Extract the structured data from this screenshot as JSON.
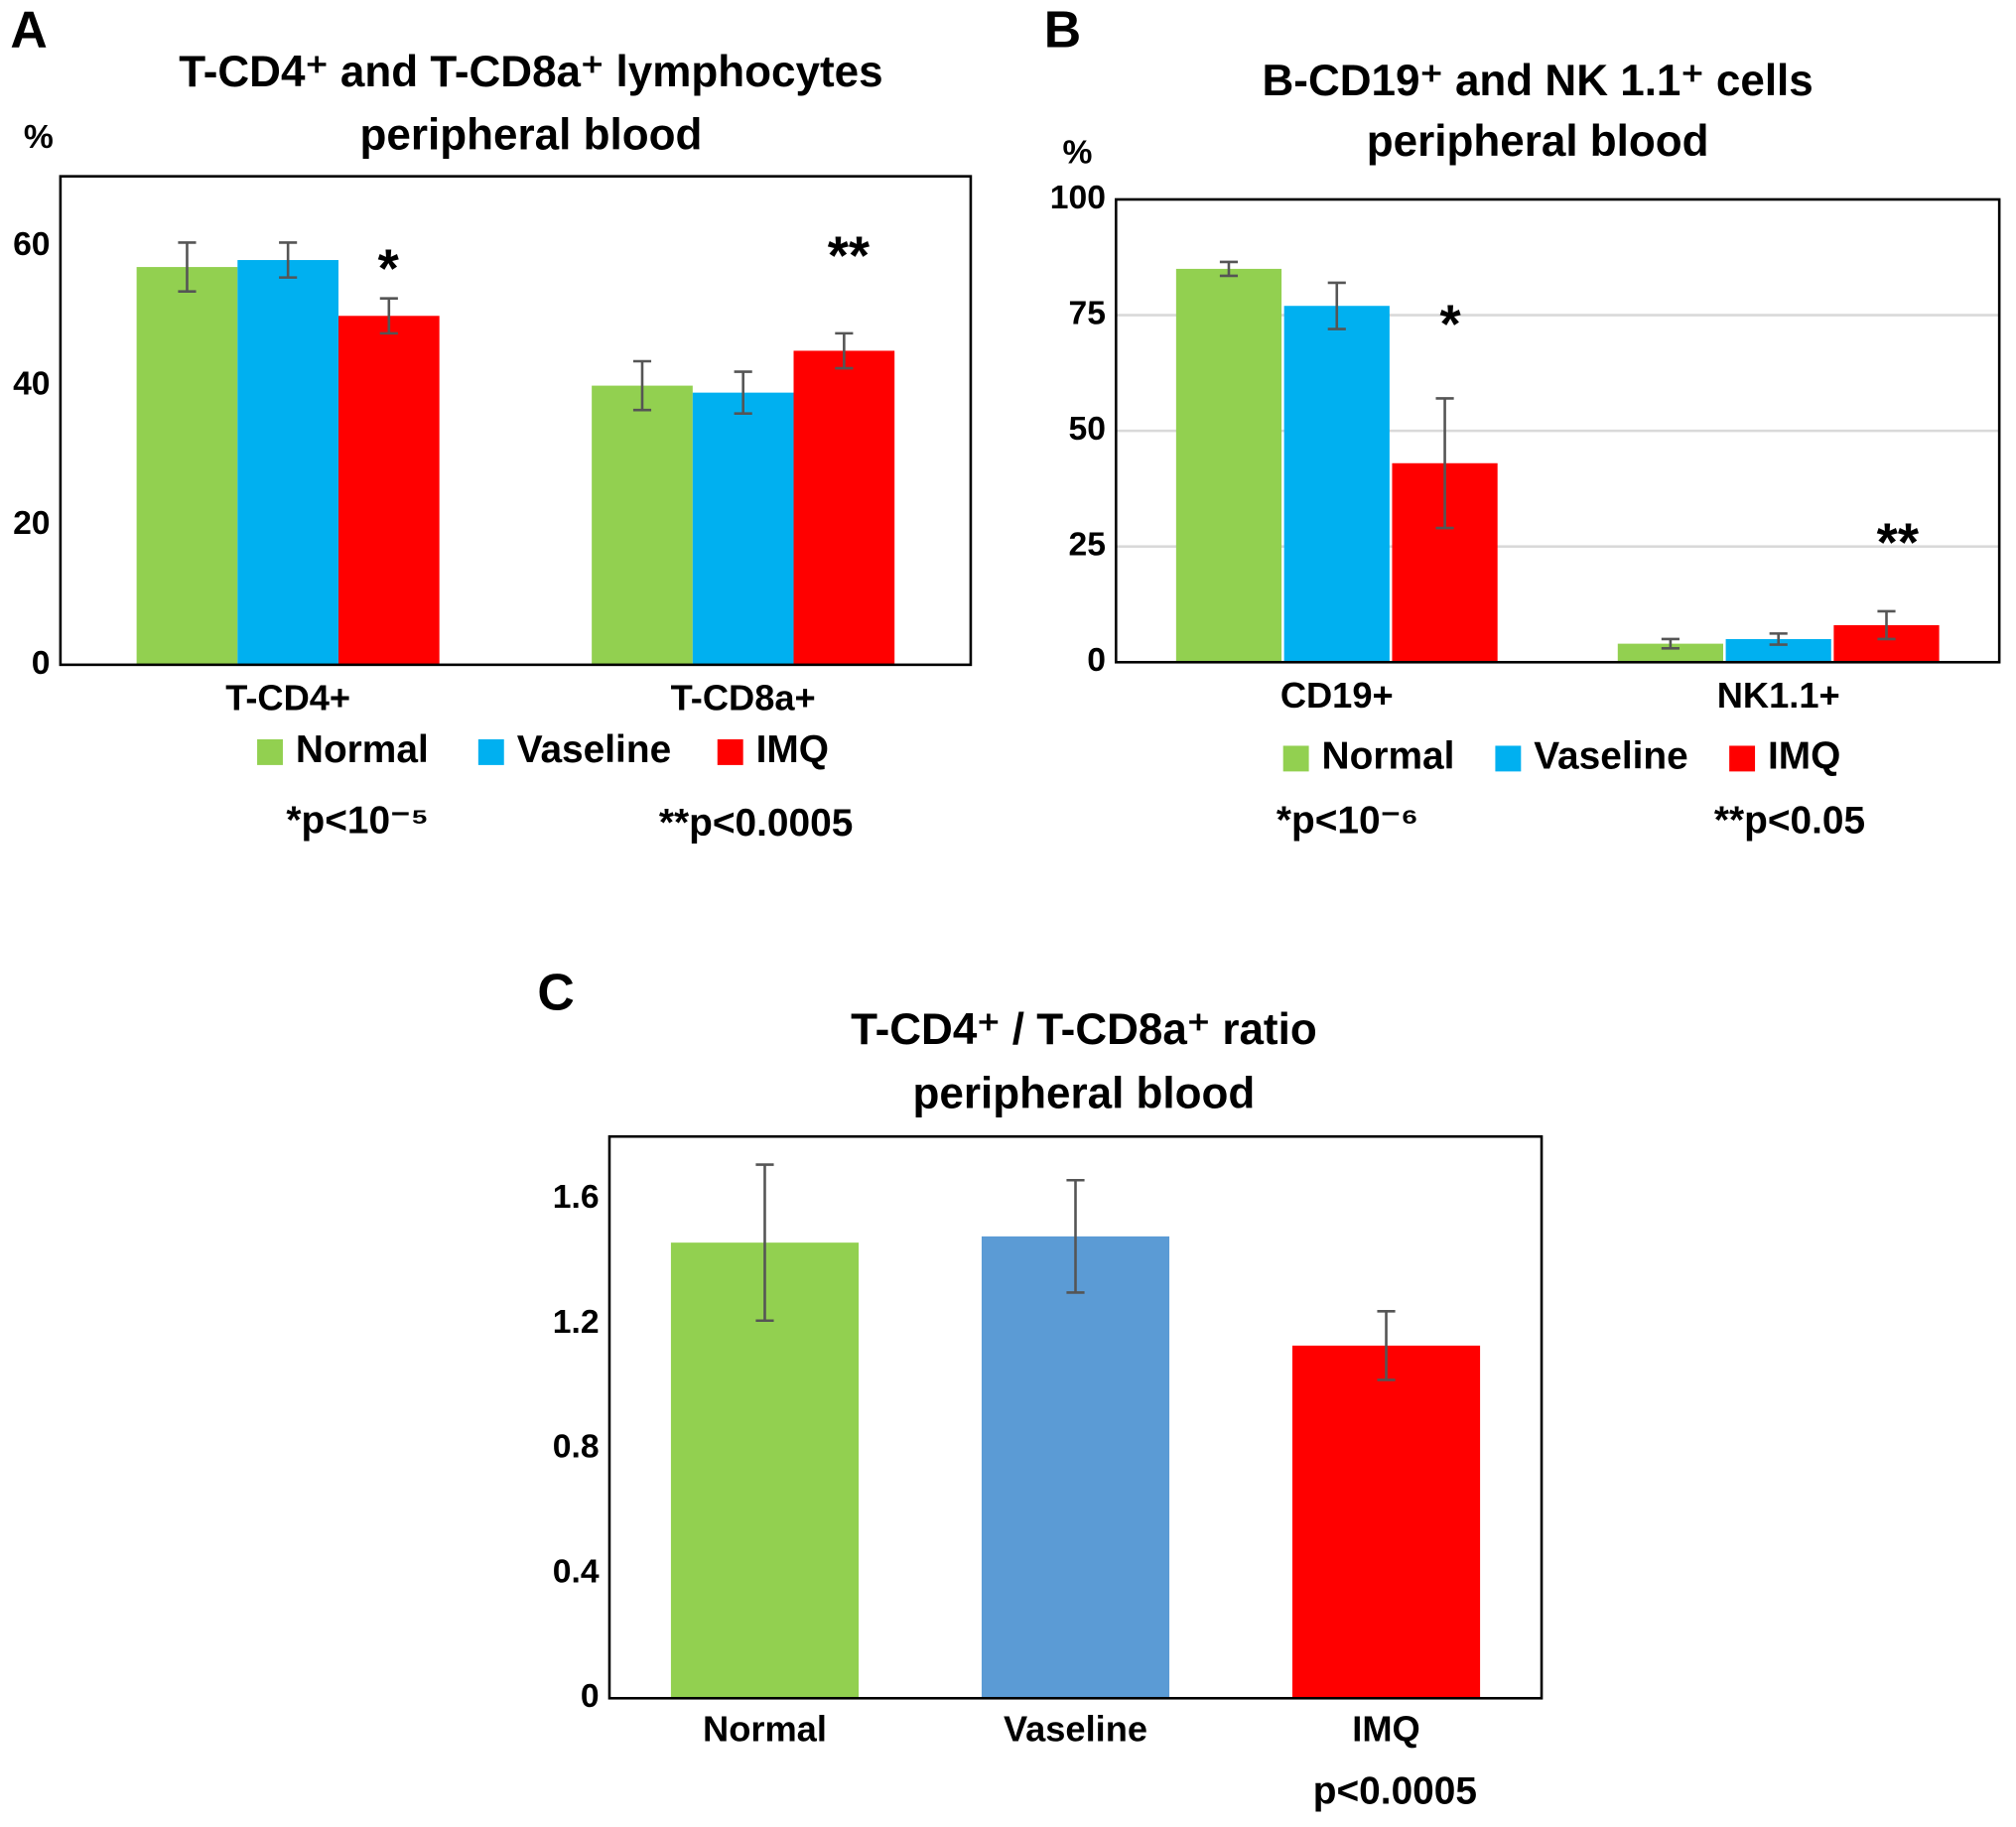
{
  "chart_data": [
    {
      "type": "bar",
      "panel": "A",
      "title": [
        "T-CD4⁺ and T-CD8a⁺ lymphocytes",
        "peripheral blood"
      ],
      "y_label": "%",
      "categories": [
        "T-CD4+",
        "T-CD8a+"
      ],
      "series": [
        {
          "name": "Normal",
          "color": "#92d050",
          "values": [
            57,
            40
          ],
          "errors": [
            3.5,
            3.5
          ]
        },
        {
          "name": "Vaseline",
          "color": "#00b0f0",
          "values": [
            58,
            39
          ],
          "errors": [
            2.5,
            3
          ]
        },
        {
          "name": "IMQ",
          "color": "#ff0000",
          "values": [
            50,
            45
          ],
          "errors": [
            2.5,
            2.5
          ]
        }
      ],
      "ylim": [
        0,
        70
      ],
      "yticks": [
        0,
        20,
        40,
        60
      ],
      "grid": false,
      "annotations": [
        "*",
        "**"
      ],
      "notes": [
        "*p<10⁻⁵",
        "**p<0.0005"
      ]
    },
    {
      "type": "bar",
      "panel": "B",
      "title": [
        "B-CD19⁺ and NK 1.1⁺ cells",
        "peripheral blood"
      ],
      "y_label": "%",
      "categories": [
        "CD19+",
        "NK1.1+"
      ],
      "series": [
        {
          "name": "Normal",
          "color": "#92d050",
          "values": [
            85,
            4
          ],
          "errors": [
            1.5,
            1
          ]
        },
        {
          "name": "Vaseline",
          "color": "#00b0f0",
          "values": [
            77,
            5
          ],
          "errors": [
            5,
            1.2
          ]
        },
        {
          "name": "IMQ",
          "color": "#ff0000",
          "values": [
            43,
            8
          ],
          "errors": [
            14,
            3
          ]
        }
      ],
      "ylim": [
        0,
        100
      ],
      "yticks": [
        0,
        25,
        50,
        75,
        100
      ],
      "grid": true,
      "annotations": [
        "*",
        "**"
      ],
      "notes": [
        "*p<10⁻⁶",
        "**p<0.05"
      ]
    },
    {
      "type": "bar",
      "panel": "C",
      "title": [
        "T-CD4⁺ / T-CD8a⁺ ratio",
        "peripheral blood"
      ],
      "categories": [
        "Normal",
        "Vaseline",
        "IMQ"
      ],
      "values": [
        1.46,
        1.48,
        1.13
      ],
      "errors": [
        0.25,
        0.18,
        0.11
      ],
      "colors": [
        "#92d050",
        "#5b9bd5",
        "#ff0000"
      ],
      "ylim": [
        0,
        1.8
      ],
      "yticks": [
        0,
        0.4,
        0.8,
        1.2,
        1.6
      ],
      "grid": false,
      "notes": [
        "p<0.0005"
      ]
    }
  ]
}
